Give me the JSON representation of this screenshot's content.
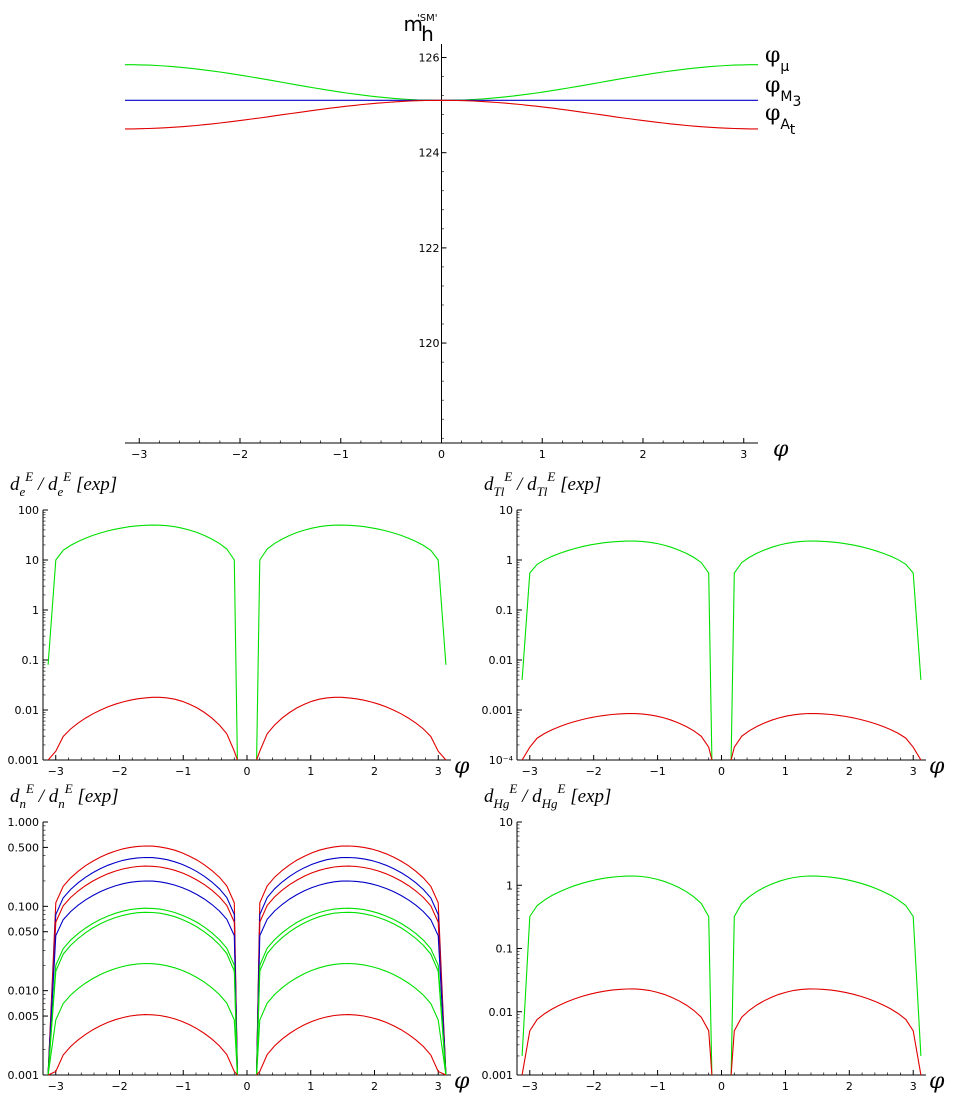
{
  "chart_data": [
    {
      "type": "line",
      "ylabel": "m",
      "ylabel_sub": "h",
      "ylabel_sup": "'SM'",
      "xlabel": "φ",
      "xlim": [
        -3.14159,
        3.14159
      ],
      "ylim": [
        117.9,
        126.2
      ],
      "xticks": [
        "−3",
        "−2",
        "−1",
        "0",
        "1",
        "2",
        "3"
      ],
      "yticks": [
        "120",
        "122",
        "124",
        "126"
      ],
      "series": [
        {
          "name": "φμ",
          "label": "φ",
          "label_sub": "μ",
          "color": "#00e000",
          "center": 125.1,
          "amp": 0.75,
          "shape": "up"
        },
        {
          "name": "φM3",
          "label": "φ",
          "label_sub": "M3",
          "color": "#0000c8",
          "center": 125.1,
          "amp": 0.0,
          "shape": "flat"
        },
        {
          "name": "φAt",
          "label": "φ",
          "label_sub": "At",
          "color": "#e00000",
          "center": 125.1,
          "amp": 0.6,
          "shape": "down"
        }
      ]
    },
    {
      "type": "line",
      "yscale": "log",
      "ylabel": "d",
      "ylabel_sup": "E",
      "ylabel_sub": "e",
      "ylabel_den_sub": "e",
      "ylabel_suffix": "[exp]",
      "xlabel": "φ",
      "xlim": [
        -3.2,
        3.2
      ],
      "ylim": [
        0.001,
        100
      ],
      "xticks": [
        "−3",
        "−2",
        "−1",
        "0",
        "1",
        "2",
        "3"
      ],
      "yticks": [
        "0.001",
        "0.01",
        "0.1",
        "1",
        "10",
        "100"
      ],
      "series": [
        {
          "color": "#00e000",
          "peak": 50,
          "edge": 10,
          "end": 0.08,
          "peak_at": 1.45
        },
        {
          "color": "#e00000",
          "peak": 0.018,
          "edge": 0.0015,
          "end": 0.001,
          "peak_at": 1.4
        }
      ]
    },
    {
      "type": "line",
      "yscale": "log",
      "ylabel": "d",
      "ylabel_sup": "E",
      "ylabel_sub": "Tl",
      "ylabel_den_sub": "Tl",
      "ylabel_suffix": "[exp]",
      "xlabel": "φ",
      "xlim": [
        -3.2,
        3.2
      ],
      "ylim": [
        0.0001,
        10
      ],
      "xticks": [
        "−3",
        "−2",
        "−1",
        "0",
        "1",
        "2",
        "3"
      ],
      "yticks": [
        "10⁻⁴",
        "0.001",
        "0.01",
        "0.1",
        "1",
        "10"
      ],
      "series": [
        {
          "color": "#00e000",
          "peak": 2.4,
          "edge": 0.55,
          "end": 0.004,
          "peak_at": 1.4
        },
        {
          "color": "#e00000",
          "peak": 0.00085,
          "edge": 0.00018,
          "end": 0.0001,
          "peak_at": 1.4
        }
      ]
    },
    {
      "type": "line",
      "yscale": "log",
      "ylabel": "d",
      "ylabel_sup": "E",
      "ylabel_sub": "n",
      "ylabel_den_sub": "n",
      "ylabel_suffix": "[exp]",
      "xlabel": "φ",
      "xlim": [
        -3.2,
        3.2
      ],
      "ylim": [
        0.001,
        1.0
      ],
      "xticks": [
        "−3",
        "−2",
        "−1",
        "0",
        "1",
        "2",
        "3"
      ],
      "yticks": [
        "0.001",
        "0.005",
        "0.010",
        "0.050",
        "0.100",
        "0.500",
        "1.000"
      ],
      "series": [
        {
          "color": "#e00000",
          "peak": 0.52,
          "edge": 0.11,
          "end": 0.001,
          "peak_at": 1.57
        },
        {
          "color": "#0000c8",
          "peak": 0.38,
          "edge": 0.08,
          "end": 0.001,
          "peak_at": 1.57
        },
        {
          "color": "#e00000",
          "peak": 0.3,
          "edge": 0.065,
          "end": 0.001,
          "peak_at": 1.57
        },
        {
          "color": "#0000c8",
          "peak": 0.2,
          "edge": 0.045,
          "end": 0.001,
          "peak_at": 1.57
        },
        {
          "color": "#00e000",
          "peak": 0.095,
          "edge": 0.02,
          "end": 0.001,
          "peak_at": 1.57
        },
        {
          "color": "#00e000",
          "peak": 0.085,
          "edge": 0.017,
          "end": 0.001,
          "peak_at": 1.57
        },
        {
          "color": "#00e000",
          "peak": 0.021,
          "edge": 0.0045,
          "end": 0.001,
          "peak_at": 1.57
        },
        {
          "color": "#e00000",
          "peak": 0.0052,
          "edge": 0.0011,
          "end": 0.001,
          "peak_at": 1.57
        }
      ]
    },
    {
      "type": "line",
      "yscale": "log",
      "ylabel": "d",
      "ylabel_sup": "E",
      "ylabel_sub": "Hg",
      "ylabel_den_sub": "Hg",
      "ylabel_suffix": "[exp]",
      "xlabel": "φ",
      "xlim": [
        -3.2,
        3.2
      ],
      "ylim": [
        0.001,
        10
      ],
      "xticks": [
        "−3",
        "−2",
        "−1",
        "0",
        "1",
        "2",
        "3"
      ],
      "yticks": [
        "0.001",
        "0.01",
        "0.1",
        "1",
        "10"
      ],
      "series": [
        {
          "color": "#00e000",
          "peak": 1.4,
          "edge": 0.32,
          "end": 0.002,
          "peak_at": 1.4
        },
        {
          "color": "#e00000",
          "peak": 0.023,
          "edge": 0.005,
          "end": 0.001,
          "peak_at": 1.4
        }
      ]
    }
  ]
}
